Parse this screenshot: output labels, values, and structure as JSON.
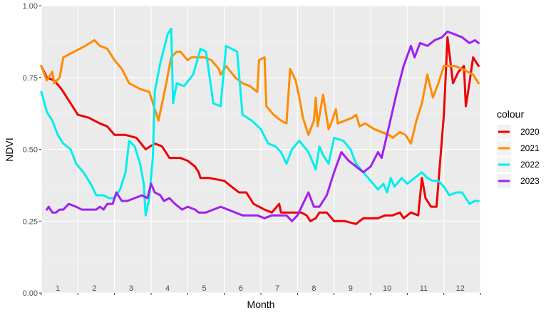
{
  "chart_data": {
    "type": "line",
    "title": "",
    "xlabel": "Month",
    "ylabel": "NDVI",
    "xlim": [
      0,
      12
    ],
    "ylim": [
      0,
      1
    ],
    "month_labels": [
      "1",
      "2",
      "3",
      "4",
      "5",
      "6",
      "7",
      "8",
      "9",
      "10",
      "11",
      "12"
    ],
    "y_ticks": [
      {
        "value": 0.0,
        "label": "0.00"
      },
      {
        "value": 0.25,
        "label": "0.25"
      },
      {
        "value": 0.5,
        "label": "0.50"
      },
      {
        "value": 0.75,
        "label": "0.75"
      },
      {
        "value": 1.0,
        "label": "1.00"
      }
    ],
    "grid": true,
    "background": "#ebebeb",
    "legend": {
      "title": "colour",
      "position": "right"
    },
    "series": [
      {
        "name": "2020",
        "color": "#ee0000",
        "points": [
          [
            0.0,
            0.79
          ],
          [
            0.15,
            0.75
          ],
          [
            0.35,
            0.74
          ],
          [
            0.55,
            0.71
          ],
          [
            0.75,
            0.67
          ],
          [
            1.0,
            0.62
          ],
          [
            1.3,
            0.61
          ],
          [
            1.6,
            0.59
          ],
          [
            1.8,
            0.58
          ],
          [
            2.0,
            0.55
          ],
          [
            2.3,
            0.55
          ],
          [
            2.6,
            0.54
          ],
          [
            2.85,
            0.5
          ],
          [
            3.1,
            0.52
          ],
          [
            3.3,
            0.51
          ],
          [
            3.5,
            0.47
          ],
          [
            3.8,
            0.47
          ],
          [
            4.0,
            0.46
          ],
          [
            4.2,
            0.44
          ],
          [
            4.3,
            0.42
          ],
          [
            4.35,
            0.4
          ],
          [
            4.6,
            0.4
          ],
          [
            5.0,
            0.39
          ],
          [
            5.2,
            0.37
          ],
          [
            5.4,
            0.35
          ],
          [
            5.6,
            0.35
          ],
          [
            5.8,
            0.31
          ],
          [
            6.1,
            0.29
          ],
          [
            6.3,
            0.28
          ],
          [
            6.5,
            0.31
          ],
          [
            6.55,
            0.28
          ],
          [
            6.8,
            0.28
          ],
          [
            7.1,
            0.28
          ],
          [
            7.25,
            0.27
          ],
          [
            7.35,
            0.25
          ],
          [
            7.5,
            0.26
          ],
          [
            7.6,
            0.28
          ],
          [
            7.8,
            0.28
          ],
          [
            8.0,
            0.25
          ],
          [
            8.3,
            0.25
          ],
          [
            8.6,
            0.24
          ],
          [
            8.8,
            0.26
          ],
          [
            9.0,
            0.26
          ],
          [
            9.2,
            0.26
          ],
          [
            9.4,
            0.27
          ],
          [
            9.6,
            0.27
          ],
          [
            9.8,
            0.28
          ],
          [
            9.9,
            0.26
          ],
          [
            10.1,
            0.28
          ],
          [
            10.3,
            0.27
          ],
          [
            10.4,
            0.4
          ],
          [
            10.5,
            0.33
          ],
          [
            10.65,
            0.3
          ],
          [
            10.8,
            0.3
          ],
          [
            11.0,
            0.62
          ],
          [
            11.1,
            0.89
          ],
          [
            11.25,
            0.73
          ],
          [
            11.4,
            0.77
          ],
          [
            11.55,
            0.79
          ],
          [
            11.6,
            0.65
          ],
          [
            11.7,
            0.73
          ],
          [
            11.8,
            0.82
          ],
          [
            11.95,
            0.79
          ]
        ]
      },
      {
        "name": "2021",
        "color": "#ff8c00",
        "points": [
          [
            0.0,
            0.79
          ],
          [
            0.15,
            0.74
          ],
          [
            0.3,
            0.77
          ],
          [
            0.35,
            0.73
          ],
          [
            0.5,
            0.75
          ],
          [
            0.6,
            0.82
          ],
          [
            0.9,
            0.84
          ],
          [
            1.2,
            0.86
          ],
          [
            1.45,
            0.88
          ],
          [
            1.6,
            0.86
          ],
          [
            1.8,
            0.85
          ],
          [
            2.0,
            0.81
          ],
          [
            2.2,
            0.78
          ],
          [
            2.4,
            0.73
          ],
          [
            2.7,
            0.71
          ],
          [
            2.95,
            0.7
          ],
          [
            3.2,
            0.6
          ],
          [
            3.4,
            0.72
          ],
          [
            3.55,
            0.82
          ],
          [
            3.7,
            0.84
          ],
          [
            3.8,
            0.84
          ],
          [
            4.0,
            0.81
          ],
          [
            4.1,
            0.82
          ],
          [
            4.25,
            0.82
          ],
          [
            4.45,
            0.82
          ],
          [
            4.65,
            0.81
          ],
          [
            4.85,
            0.78
          ],
          [
            4.9,
            0.76
          ],
          [
            5.05,
            0.79
          ],
          [
            5.3,
            0.75
          ],
          [
            5.5,
            0.73
          ],
          [
            5.7,
            0.72
          ],
          [
            5.9,
            0.7
          ],
          [
            5.95,
            0.81
          ],
          [
            6.1,
            0.82
          ],
          [
            6.15,
            0.65
          ],
          [
            6.35,
            0.62
          ],
          [
            6.55,
            0.6
          ],
          [
            6.7,
            0.59
          ],
          [
            6.8,
            0.78
          ],
          [
            6.95,
            0.74
          ],
          [
            7.05,
            0.68
          ],
          [
            7.15,
            0.61
          ],
          [
            7.3,
            0.55
          ],
          [
            7.45,
            0.6
          ],
          [
            7.5,
            0.68
          ],
          [
            7.55,
            0.58
          ],
          [
            7.7,
            0.69
          ],
          [
            7.85,
            0.57
          ],
          [
            7.95,
            0.6
          ],
          [
            8.05,
            0.64
          ],
          [
            8.1,
            0.59
          ],
          [
            8.3,
            0.6
          ],
          [
            8.5,
            0.61
          ],
          [
            8.6,
            0.62
          ],
          [
            8.7,
            0.58
          ],
          [
            8.85,
            0.59
          ],
          [
            9.1,
            0.57
          ],
          [
            9.3,
            0.56
          ],
          [
            9.5,
            0.55
          ],
          [
            9.6,
            0.54
          ],
          [
            9.8,
            0.56
          ],
          [
            9.95,
            0.55
          ],
          [
            10.1,
            0.52
          ],
          [
            10.25,
            0.6
          ],
          [
            10.4,
            0.66
          ],
          [
            10.55,
            0.76
          ],
          [
            10.7,
            0.68
          ],
          [
            10.85,
            0.73
          ],
          [
            11.0,
            0.79
          ],
          [
            11.1,
            0.79
          ],
          [
            11.3,
            0.79
          ],
          [
            11.5,
            0.78
          ],
          [
            11.65,
            0.77
          ],
          [
            11.8,
            0.76
          ],
          [
            11.95,
            0.73
          ]
        ]
      },
      {
        "name": "2022",
        "color": "#00eeee",
        "points": [
          [
            0.0,
            0.7
          ],
          [
            0.15,
            0.63
          ],
          [
            0.3,
            0.6
          ],
          [
            0.45,
            0.55
          ],
          [
            0.6,
            0.52
          ],
          [
            0.8,
            0.5
          ],
          [
            0.95,
            0.45
          ],
          [
            1.15,
            0.42
          ],
          [
            1.35,
            0.38
          ],
          [
            1.5,
            0.34
          ],
          [
            1.7,
            0.34
          ],
          [
            1.85,
            0.33
          ],
          [
            2.0,
            0.33
          ],
          [
            2.15,
            0.36
          ],
          [
            2.3,
            0.42
          ],
          [
            2.4,
            0.53
          ],
          [
            2.55,
            0.51
          ],
          [
            2.7,
            0.45
          ],
          [
            2.8,
            0.38
          ],
          [
            2.85,
            0.27
          ],
          [
            2.95,
            0.33
          ],
          [
            3.05,
            0.48
          ],
          [
            3.1,
            0.7
          ],
          [
            3.25,
            0.8
          ],
          [
            3.45,
            0.9
          ],
          [
            3.55,
            0.92
          ],
          [
            3.6,
            0.66
          ],
          [
            3.7,
            0.73
          ],
          [
            3.9,
            0.72
          ],
          [
            4.15,
            0.76
          ],
          [
            4.35,
            0.85
          ],
          [
            4.5,
            0.84
          ],
          [
            4.7,
            0.66
          ],
          [
            4.9,
            0.65
          ],
          [
            5.05,
            0.86
          ],
          [
            5.2,
            0.85
          ],
          [
            5.35,
            0.84
          ],
          [
            5.5,
            0.62
          ],
          [
            5.75,
            0.6
          ],
          [
            6.0,
            0.57
          ],
          [
            6.2,
            0.52
          ],
          [
            6.4,
            0.51
          ],
          [
            6.55,
            0.49
          ],
          [
            6.7,
            0.45
          ],
          [
            6.85,
            0.5
          ],
          [
            7.05,
            0.53
          ],
          [
            7.3,
            0.49
          ],
          [
            7.5,
            0.43
          ],
          [
            7.6,
            0.51
          ],
          [
            7.7,
            0.48
          ],
          [
            7.85,
            0.45
          ],
          [
            8.0,
            0.54
          ],
          [
            8.25,
            0.53
          ],
          [
            8.45,
            0.5
          ],
          [
            8.6,
            0.45
          ],
          [
            8.8,
            0.42
          ],
          [
            9.0,
            0.39
          ],
          [
            9.2,
            0.36
          ],
          [
            9.35,
            0.38
          ],
          [
            9.45,
            0.35
          ],
          [
            9.55,
            0.4
          ],
          [
            9.65,
            0.37
          ],
          [
            9.85,
            0.4
          ],
          [
            10.0,
            0.38
          ],
          [
            10.2,
            0.4
          ],
          [
            10.4,
            0.42
          ],
          [
            10.55,
            0.4
          ],
          [
            10.7,
            0.39
          ],
          [
            10.85,
            0.39
          ],
          [
            11.0,
            0.37
          ],
          [
            11.15,
            0.34
          ],
          [
            11.35,
            0.35
          ],
          [
            11.5,
            0.35
          ],
          [
            11.7,
            0.31
          ],
          [
            11.85,
            0.32
          ],
          [
            11.95,
            0.32
          ]
        ]
      },
      {
        "name": "2023",
        "color": "#a020f0",
        "points": [
          [
            0.15,
            0.29
          ],
          [
            0.2,
            0.3
          ],
          [
            0.3,
            0.28
          ],
          [
            0.4,
            0.28
          ],
          [
            0.5,
            0.29
          ],
          [
            0.6,
            0.29
          ],
          [
            0.75,
            0.31
          ],
          [
            0.95,
            0.3
          ],
          [
            1.1,
            0.29
          ],
          [
            1.3,
            0.29
          ],
          [
            1.5,
            0.29
          ],
          [
            1.6,
            0.3
          ],
          [
            1.7,
            0.29
          ],
          [
            1.8,
            0.31
          ],
          [
            1.95,
            0.31
          ],
          [
            2.05,
            0.35
          ],
          [
            2.2,
            0.32
          ],
          [
            2.35,
            0.32
          ],
          [
            2.55,
            0.33
          ],
          [
            2.75,
            0.34
          ],
          [
            2.9,
            0.33
          ],
          [
            3.0,
            0.38
          ],
          [
            3.1,
            0.35
          ],
          [
            3.25,
            0.34
          ],
          [
            3.35,
            0.32
          ],
          [
            3.5,
            0.33
          ],
          [
            3.65,
            0.31
          ],
          [
            3.85,
            0.29
          ],
          [
            4.0,
            0.3
          ],
          [
            4.2,
            0.29
          ],
          [
            4.3,
            0.28
          ],
          [
            4.5,
            0.28
          ],
          [
            4.7,
            0.29
          ],
          [
            4.9,
            0.3
          ],
          [
            5.1,
            0.29
          ],
          [
            5.3,
            0.28
          ],
          [
            5.5,
            0.27
          ],
          [
            5.7,
            0.27
          ],
          [
            5.9,
            0.27
          ],
          [
            6.1,
            0.26
          ],
          [
            6.3,
            0.27
          ],
          [
            6.5,
            0.27
          ],
          [
            6.7,
            0.27
          ],
          [
            6.85,
            0.25
          ],
          [
            7.0,
            0.27
          ],
          [
            7.15,
            0.31
          ],
          [
            7.3,
            0.35
          ],
          [
            7.45,
            0.3
          ],
          [
            7.6,
            0.3
          ],
          [
            7.8,
            0.34
          ],
          [
            8.0,
            0.42
          ],
          [
            8.2,
            0.49
          ],
          [
            8.4,
            0.46
          ],
          [
            8.6,
            0.44
          ],
          [
            8.8,
            0.42
          ],
          [
            9.0,
            0.44
          ],
          [
            9.2,
            0.49
          ],
          [
            9.3,
            0.47
          ],
          [
            9.5,
            0.58
          ],
          [
            9.7,
            0.69
          ],
          [
            9.9,
            0.79
          ],
          [
            10.1,
            0.86
          ],
          [
            10.2,
            0.82
          ],
          [
            10.35,
            0.87
          ],
          [
            10.55,
            0.86
          ],
          [
            10.75,
            0.88
          ],
          [
            10.95,
            0.89
          ],
          [
            11.1,
            0.91
          ],
          [
            11.3,
            0.9
          ],
          [
            11.5,
            0.89
          ],
          [
            11.7,
            0.87
          ],
          [
            11.85,
            0.88
          ],
          [
            11.95,
            0.87
          ]
        ]
      }
    ]
  }
}
